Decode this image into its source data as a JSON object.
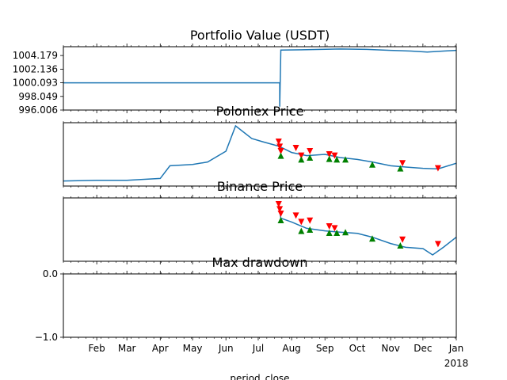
{
  "chart_data": [
    {
      "type": "line",
      "title": "Portfolio Value (USDT)",
      "y_ticks": [
        "996.006",
        "998.049",
        "1000.093",
        "1002.136",
        "1004.179"
      ],
      "ylim": [
        996.006,
        1005.5
      ],
      "series": [
        {
          "color": "#1f77b4",
          "points": [
            [
              "2017-01-01",
              1000.093
            ],
            [
              "2017-07-21",
              1000.093
            ],
            [
              "2017-07-21",
              996.5
            ],
            [
              "2017-07-22",
              1005.0
            ],
            [
              "2017-08-15",
              1005.05
            ],
            [
              "2017-09-15",
              1005.15
            ],
            [
              "2017-10-10",
              1005.1
            ],
            [
              "2017-11-01",
              1004.95
            ],
            [
              "2017-11-20",
              1004.85
            ],
            [
              "2017-12-05",
              1004.7
            ],
            [
              "2017-12-20",
              1004.85
            ],
            [
              "2018-01-01",
              1004.95
            ]
          ]
        }
      ]
    },
    {
      "type": "line",
      "title": "Poloniex Price",
      "ylim": [
        0,
        100
      ],
      "series": [
        {
          "color": "#1f77b4",
          "points": [
            [
              "2017-01-01",
              8
            ],
            [
              "2017-02-01",
              9
            ],
            [
              "2017-03-01",
              9
            ],
            [
              "2017-04-01",
              12
            ],
            [
              "2017-04-10",
              32
            ],
            [
              "2017-05-01",
              34
            ],
            [
              "2017-05-15",
              38
            ],
            [
              "2017-06-01",
              55
            ],
            [
              "2017-06-10",
              95
            ],
            [
              "2017-06-25",
              75
            ],
            [
              "2017-07-05",
              70
            ],
            [
              "2017-07-20",
              63
            ],
            [
              "2017-08-01",
              53
            ],
            [
              "2017-08-15",
              48
            ],
            [
              "2017-09-01",
              50
            ],
            [
              "2017-09-15",
              45
            ],
            [
              "2017-10-01",
              42
            ],
            [
              "2017-10-15",
              38
            ],
            [
              "2017-11-01",
              32
            ],
            [
              "2017-11-15",
              30
            ],
            [
              "2017-12-01",
              28
            ],
            [
              "2017-12-15",
              27
            ],
            [
              "2018-01-01",
              36
            ]
          ]
        }
      ],
      "sell_markers": [
        [
          "2017-07-20",
          70
        ],
        [
          "2017-07-21",
          62
        ],
        [
          "2017-07-22",
          55
        ],
        [
          "2017-08-05",
          60
        ],
        [
          "2017-08-10",
          48
        ],
        [
          "2017-08-18",
          55
        ],
        [
          "2017-09-05",
          50
        ],
        [
          "2017-09-10",
          48
        ],
        [
          "2017-11-12",
          36
        ],
        [
          "2017-12-15",
          28
        ]
      ],
      "buy_markers": [
        [
          "2017-07-22",
          48
        ],
        [
          "2017-08-10",
          42
        ],
        [
          "2017-08-18",
          45
        ],
        [
          "2017-09-05",
          43
        ],
        [
          "2017-09-12",
          42
        ],
        [
          "2017-09-20",
          42
        ],
        [
          "2017-10-15",
          34
        ],
        [
          "2017-11-10",
          28
        ]
      ]
    },
    {
      "type": "line",
      "title": "Binance Price",
      "ylim": [
        0,
        100
      ],
      "series": [
        {
          "color": "#1f77b4",
          "points": [
            [
              "2017-07-20",
              90
            ],
            [
              "2017-07-22",
              68
            ],
            [
              "2017-08-01",
              62
            ],
            [
              "2017-08-15",
              52
            ],
            [
              "2017-09-01",
              48
            ],
            [
              "2017-09-15",
              46
            ],
            [
              "2017-10-01",
              44
            ],
            [
              "2017-10-15",
              38
            ],
            [
              "2017-11-01",
              28
            ],
            [
              "2017-11-15",
              22
            ],
            [
              "2017-12-01",
              20
            ],
            [
              "2017-12-10",
              10
            ],
            [
              "2017-12-20",
              22
            ],
            [
              "2018-01-01",
              38
            ]
          ]
        }
      ],
      "sell_markers": [
        [
          "2017-07-20",
          90
        ],
        [
          "2017-07-21",
          82
        ],
        [
          "2017-07-22",
          75
        ],
        [
          "2017-08-05",
          72
        ],
        [
          "2017-08-10",
          62
        ],
        [
          "2017-08-18",
          64
        ],
        [
          "2017-09-05",
          55
        ],
        [
          "2017-09-10",
          52
        ],
        [
          "2017-11-12",
          34
        ],
        [
          "2017-12-15",
          27
        ]
      ],
      "buy_markers": [
        [
          "2017-07-22",
          65
        ],
        [
          "2017-08-10",
          48
        ],
        [
          "2017-08-18",
          50
        ],
        [
          "2017-09-05",
          45
        ],
        [
          "2017-09-12",
          45
        ],
        [
          "2017-09-20",
          46
        ],
        [
          "2017-10-15",
          36
        ],
        [
          "2017-11-10",
          25
        ]
      ]
    },
    {
      "type": "line",
      "title": "Max drawdown",
      "y_ticks": [
        "0.0",
        "−1.0"
      ],
      "ylim": [
        -1.0,
        0.0
      ],
      "series": []
    }
  ],
  "x_axis": {
    "xlim": [
      "2017-01-01",
      "2018-01-01"
    ],
    "month_ticks": [
      {
        "label": "Feb",
        "date": "2017-02-01"
      },
      {
        "label": "Mar",
        "date": "2017-03-01"
      },
      {
        "label": "Apr",
        "date": "2017-04-01"
      },
      {
        "label": "May",
        "date": "2017-05-01"
      },
      {
        "label": "Jun",
        "date": "2017-06-01"
      },
      {
        "label": "Jul",
        "date": "2017-07-01"
      },
      {
        "label": "Aug",
        "date": "2017-08-01"
      },
      {
        "label": "Sep",
        "date": "2017-09-01"
      },
      {
        "label": "Oct",
        "date": "2017-10-01"
      },
      {
        "label": "Nov",
        "date": "2017-11-01"
      },
      {
        "label": "Dec",
        "date": "2017-12-01"
      },
      {
        "label": "Jan",
        "date": "2018-01-01"
      }
    ],
    "year_label": "2018",
    "xlabel": "period_close"
  },
  "colors": {
    "line": "#1f77b4",
    "sell_marker": "#ff0000",
    "buy_marker": "#008000"
  }
}
